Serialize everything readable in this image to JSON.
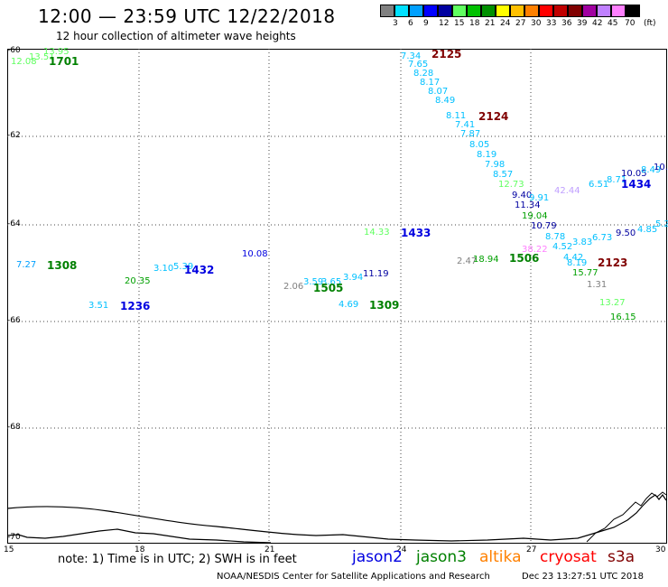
{
  "header": {
    "title": "12:00 — 23:59 UTC 12/22/2018",
    "subtitle": "12 hour collection of altimeter wave heights"
  },
  "legend": {
    "unit": "(ft)",
    "colors": [
      "#808080",
      "#00e0ff",
      "#00a0ff",
      "#0000ff",
      "#0000a0",
      "#60ff60",
      "#00c000",
      "#009000",
      "#ffff00",
      "#ffc000",
      "#ff8000",
      "#ff0000",
      "#c00000",
      "#800000",
      "#a000a0",
      "#c080ff",
      "#ff80ff",
      "#000000"
    ],
    "labels": [
      "3",
      "6",
      "9",
      "12",
      "15",
      "18",
      "21",
      "24",
      "27",
      "30",
      "33",
      "36",
      "39",
      "42",
      "45",
      "70"
    ]
  },
  "axes": {
    "lat_labels": [
      "-60",
      "-62",
      "-64",
      "-66",
      "-68",
      "-70"
    ],
    "lon_labels": [
      "15",
      "18",
      "21",
      "24",
      "27",
      "30"
    ]
  },
  "swh_points": [
    {
      "text": "12.08",
      "color": "#60ff60"
    },
    {
      "text": "13.51",
      "color": "#60ff60"
    },
    {
      "text": "13.95",
      "color": "#60ff60"
    },
    {
      "text": "7.27",
      "color": "#00a0ff"
    },
    {
      "text": "20.35",
      "color": "#00a000"
    },
    {
      "text": "3.10",
      "color": "#00c0ff"
    },
    {
      "text": "5.39",
      "color": "#00c0ff"
    },
    {
      "text": "3.51",
      "color": "#00c0ff"
    },
    {
      "text": "10.08",
      "color": "#0000e0"
    },
    {
      "text": "2.06",
      "color": "#808080"
    },
    {
      "text": "3.59",
      "color": "#00c0ff"
    },
    {
      "text": "3.65",
      "color": "#00c0ff"
    },
    {
      "text": "3.94",
      "color": "#00c0ff"
    },
    {
      "text": "11.19",
      "color": "#0000a0"
    },
    {
      "text": "4.69",
      "color": "#00c0ff"
    },
    {
      "text": "14.33",
      "color": "#60ff60"
    },
    {
      "text": "7.34",
      "color": "#00c0ff"
    },
    {
      "text": "7.65",
      "color": "#00c0ff"
    },
    {
      "text": "8.28",
      "color": "#00c0ff"
    },
    {
      "text": "8.17",
      "color": "#00c0ff"
    },
    {
      "text": "8.07",
      "color": "#00c0ff"
    },
    {
      "text": "8.49",
      "color": "#00c0ff"
    },
    {
      "text": "8.11",
      "color": "#00c0ff"
    },
    {
      "text": "7.41",
      "color": "#00c0ff"
    },
    {
      "text": "7.87",
      "color": "#00c0ff"
    },
    {
      "text": "8.05",
      "color": "#00c0ff"
    },
    {
      "text": "8.19",
      "color": "#00c0ff"
    },
    {
      "text": "7.98",
      "color": "#00c0ff"
    },
    {
      "text": "8.57",
      "color": "#00c0ff"
    },
    {
      "text": "12.73",
      "color": "#60ff60"
    },
    {
      "text": "9.40",
      "color": "#0000a0"
    },
    {
      "text": "9.91",
      "color": "#00c0ff"
    },
    {
      "text": "11.34",
      "color": "#0000a0"
    },
    {
      "text": "19.04",
      "color": "#00a000"
    },
    {
      "text": "10.79",
      "color": "#0000a0"
    },
    {
      "text": "8.78",
      "color": "#00c0ff"
    },
    {
      "text": "4.52",
      "color": "#00c0ff"
    },
    {
      "text": "3.83",
      "color": "#00c0ff"
    },
    {
      "text": "6.73",
      "color": "#00c0ff"
    },
    {
      "text": "4.42",
      "color": "#00c0ff"
    },
    {
      "text": "8.19",
      "color": "#00c0ff"
    },
    {
      "text": "15.77",
      "color": "#00a000"
    },
    {
      "text": "1.31",
      "color": "#808080"
    },
    {
      "text": "13.27",
      "color": "#60ff60"
    },
    {
      "text": "16.15",
      "color": "#00a000"
    },
    {
      "text": "2.47",
      "color": "#808080"
    },
    {
      "text": "18.94",
      "color": "#00a000"
    },
    {
      "text": "38.22",
      "color": "#ff80ff"
    },
    {
      "text": "42.44",
      "color": "#c0a0ff"
    },
    {
      "text": "6.51",
      "color": "#00c0ff"
    },
    {
      "text": "8.71",
      "color": "#00c0ff"
    },
    {
      "text": "10.05",
      "color": "#0000a0"
    },
    {
      "text": "8.49",
      "color": "#00c0ff"
    },
    {
      "text": "10.",
      "color": "#0000a0"
    },
    {
      "text": "9.50",
      "color": "#0000a0"
    },
    {
      "text": "4.85",
      "color": "#00c0ff"
    },
    {
      "text": "5.2",
      "color": "#00c0ff"
    }
  ],
  "pass_times": [
    {
      "text": "1701",
      "color": "#008000"
    },
    {
      "text": "1308",
      "color": "#008000"
    },
    {
      "text": "1432",
      "color": "#0000e0"
    },
    {
      "text": "1236",
      "color": "#0000e0"
    },
    {
      "text": "1505",
      "color": "#008000"
    },
    {
      "text": "1309",
      "color": "#008000"
    },
    {
      "text": "1433",
      "color": "#0000e0"
    },
    {
      "text": "2125",
      "color": "#800000"
    },
    {
      "text": "2124",
      "color": "#800000"
    },
    {
      "text": "1506",
      "color": "#008000"
    },
    {
      "text": "2123",
      "color": "#800000"
    },
    {
      "text": "1434",
      "color": "#0000e0"
    }
  ],
  "footer": {
    "note": "note: 1) Time is in UTC; 2) SWH is in feet",
    "missions": [
      {
        "name": "jason2",
        "color": "#0000e0"
      },
      {
        "name": "jason3",
        "color": "#008000"
      },
      {
        "name": "altika",
        "color": "#ff8000"
      },
      {
        "name": "cryosat",
        "color": "#ff0000"
      },
      {
        "name": "s3a",
        "color": "#800000"
      }
    ],
    "credit": "NOAA/NESDIS Center for Satellite Applications and Research",
    "timestamp": "Dec 23 13:27:51 UTC 2018"
  }
}
